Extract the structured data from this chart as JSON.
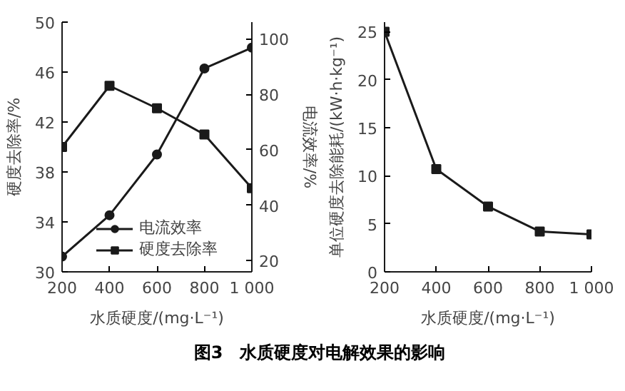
{
  "chart_data": [
    {
      "type": "line",
      "x": [
        200,
        400,
        600,
        800,
        1000
      ],
      "xlabel": "水质硬度/(mg·L⁻¹)",
      "ylabel": "硬度去除率/%",
      "y2label": "电流效率/%",
      "xlim": [
        200,
        1000
      ],
      "xticks": [
        200,
        400,
        600,
        800,
        {
          "value": 1000,
          "label": "1 000"
        }
      ],
      "ylim": [
        30,
        50
      ],
      "yticks": [
        30,
        34,
        38,
        42,
        46,
        50
      ],
      "y2lim": [
        16,
        106
      ],
      "y2ticks": [
        20,
        40,
        60,
        80,
        100
      ],
      "series": [
        {
          "name": "电流效率",
          "color": "#1a1a1a",
          "marker": "circle",
          "axis": "y2",
          "values": [
            21.5,
            36.4,
            58.3,
            89.3,
            96.8
          ]
        },
        {
          "name": "硬度去除率",
          "color": "#1a1a1a",
          "marker": "square",
          "values": [
            40,
            44.9,
            43.1,
            41.0,
            36.7
          ]
        }
      ],
      "legend": "bottom",
      "grid": false
    },
    {
      "type": "line",
      "x": [
        200,
        400,
        600,
        800,
        1000
      ],
      "xlabel": "水质硬度/(mg·L⁻¹)",
      "ylabel": "单位硬度去除能耗/(kW·h·kg⁻¹)",
      "xlim": [
        200,
        1000
      ],
      "xticks": [
        200,
        400,
        600,
        800,
        {
          "value": 1000,
          "label": "1 000"
        }
      ],
      "ylim": [
        0,
        26
      ],
      "yticks": [
        0,
        5,
        10,
        15,
        20,
        25
      ],
      "series": [
        {
          "color": "#1a1a1a",
          "marker": "square",
          "values": [
            25,
            10.7,
            6.8,
            4.2,
            3.9
          ]
        }
      ],
      "grid": false,
      "annotations": [
        "图3　水质硬度对电解效果的影响"
      ]
    }
  ]
}
